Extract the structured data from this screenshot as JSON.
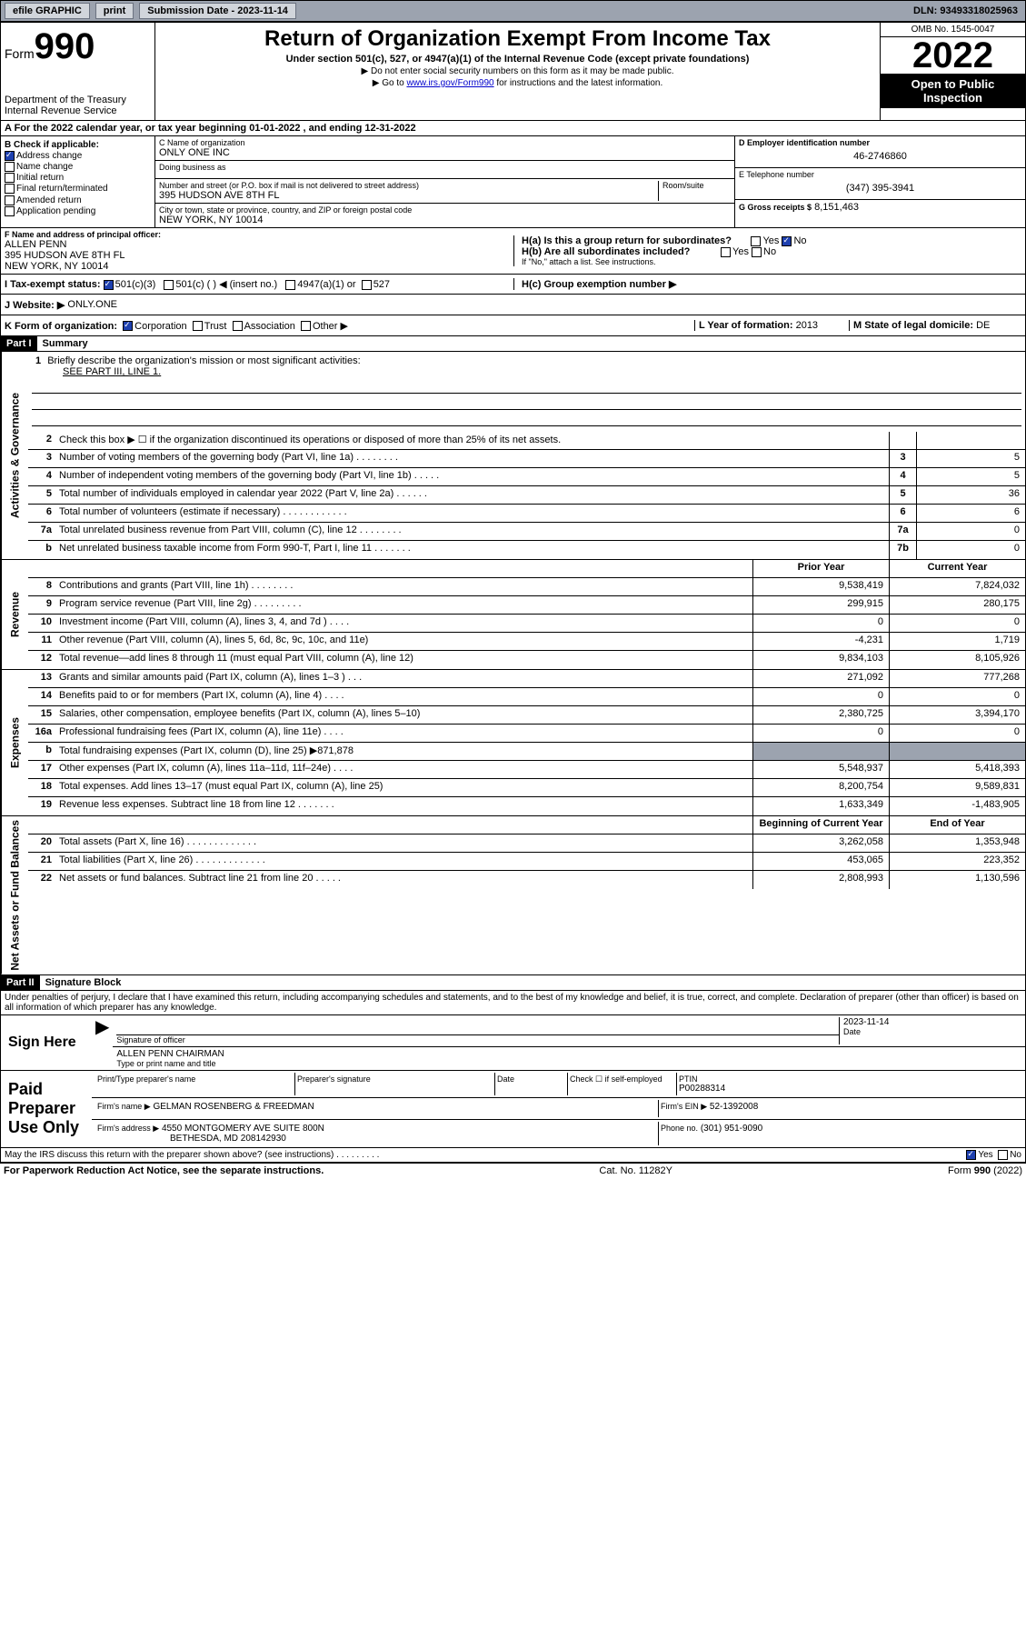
{
  "topbar": {
    "efile": "efile GRAPHIC",
    "print": "print",
    "sub_label": "Submission Date - 2023-11-14",
    "dln": "DLN: 93493318025963"
  },
  "header": {
    "form_label": "Form",
    "form_number": "990",
    "dept": "Department of the Treasury",
    "irs": "Internal Revenue Service",
    "title": "Return of Organization Exempt From Income Tax",
    "subtitle": "Under section 501(c), 527, or 4947(a)(1) of the Internal Revenue Code (except private foundations)",
    "note1": "▶ Do not enter social security numbers on this form as it may be made public.",
    "note2_prefix": "▶ Go to ",
    "note2_link": "www.irs.gov/Form990",
    "note2_suffix": " for instructions and the latest information.",
    "omb": "OMB No. 1545-0047",
    "year": "2022",
    "open": "Open to Public Inspection"
  },
  "taxyear": "A For the 2022 calendar year, or tax year beginning 01-01-2022    , and ending 12-31-2022",
  "checkboxes": {
    "heading": "B Check if applicable:",
    "items": [
      "Address change",
      "Name change",
      "Initial return",
      "Final return/terminated",
      "Amended return",
      "Application pending"
    ],
    "checked_idx": 0
  },
  "org": {
    "name_label": "C Name of organization",
    "name": "ONLY ONE INC",
    "dba_label": "Doing business as",
    "addr_label": "Number and street (or P.O. box if mail is not delivered to street address)",
    "room_label": "Room/suite",
    "addr": "395 HUDSON AVE 8TH FL",
    "city_label": "City or town, state or province, country, and ZIP or foreign postal code",
    "city": "NEW YORK, NY  10014"
  },
  "right_header": {
    "ein_label": "D Employer identification number",
    "ein": "46-2746860",
    "phone_label": "E Telephone number",
    "phone": "(347) 395-3941",
    "gross_label": "G Gross receipts $",
    "gross": "8,151,463"
  },
  "officer": {
    "label": "F Name and address of principal officer:",
    "name": "ALLEN PENN",
    "addr1": "395 HUDSON AVE 8TH FL",
    "addr2": "NEW YORK, NY  10014"
  },
  "h_section": {
    "ha": "H(a)  Is this a group return for subordinates?",
    "hb": "H(b)  Are all subordinates included?",
    "hb_note": "If \"No,\" attach a list. See instructions.",
    "hc": "H(c)  Group exemption number ▶",
    "yes": "Yes",
    "no": "No"
  },
  "tax_status": {
    "label": "I    Tax-exempt status:",
    "opts": [
      "501(c)(3)",
      "501(c) (  ) ◀ (insert no.)",
      "4947(a)(1) or",
      "527"
    ]
  },
  "website": {
    "label": "J    Website: ▶",
    "value": "ONLY.ONE"
  },
  "k_line": {
    "label": "K Form of organization:",
    "opts": [
      "Corporation",
      "Trust",
      "Association",
      "Other ▶"
    ]
  },
  "l_line": {
    "label": "L Year of formation:",
    "value": "2013"
  },
  "m_line": {
    "label": "M State of legal domicile:",
    "value": "DE"
  },
  "part1": {
    "label": "Part I",
    "title": "Summary"
  },
  "mission": {
    "num": "1",
    "label": "Briefly describe the organization's mission or most significant activities:",
    "text": "SEE PART III, LINE 1."
  },
  "governance": {
    "side": "Activities & Governance",
    "rows": [
      {
        "n": "2",
        "d": "Check this box ▶ ☐  if the organization discontinued its operations or disposed of more than 25% of its net assets.",
        "c": "",
        "v": ""
      },
      {
        "n": "3",
        "d": "Number of voting members of the governing body (Part VI, line 1a)    .    .    .    .    .    .    .    .",
        "c": "3",
        "v": "5"
      },
      {
        "n": "4",
        "d": "Number of independent voting members of the governing body (Part VI, line 1b)   .    .    .    .    .",
        "c": "4",
        "v": "5"
      },
      {
        "n": "5",
        "d": "Total number of individuals employed in calendar year 2022 (Part V, line 2a)    .    .    .    .    .    .",
        "c": "5",
        "v": "36"
      },
      {
        "n": "6",
        "d": "Total number of volunteers (estimate if necessary)    .    .    .    .    .    .    .    .    .    .    .    .",
        "c": "6",
        "v": "6"
      },
      {
        "n": "7a",
        "d": "Total unrelated business revenue from Part VIII, column (C), line 12   .    .    .    .    .    .    .    .",
        "c": "7a",
        "v": "0"
      },
      {
        "n": "b",
        "d": "Net unrelated business taxable income from Form 990-T, Part I, line 11   .    .    .    .    .    .    .",
        "c": "7b",
        "v": "0"
      }
    ]
  },
  "revenue": {
    "side": "Revenue",
    "head_prior": "Prior Year",
    "head_current": "Current Year",
    "rows": [
      {
        "n": "8",
        "d": "Contributions and grants (Part VIII, line 1h)    .    .    .    .    .    .    .    .",
        "p": "9,538,419",
        "c": "7,824,032"
      },
      {
        "n": "9",
        "d": "Program service revenue (Part VIII, line 2g)    .    .    .    .    .    .    .    .    .",
        "p": "299,915",
        "c": "280,175"
      },
      {
        "n": "10",
        "d": "Investment income (Part VIII, column (A), lines 3, 4, and 7d )    .    .    .    .",
        "p": "0",
        "c": "0"
      },
      {
        "n": "11",
        "d": "Other revenue (Part VIII, column (A), lines 5, 6d, 8c, 9c, 10c, and 11e)",
        "p": "-4,231",
        "c": "1,719"
      },
      {
        "n": "12",
        "d": "Total revenue—add lines 8 through 11 (must equal Part VIII, column (A), line 12)",
        "p": "9,834,103",
        "c": "8,105,926"
      }
    ]
  },
  "expenses": {
    "side": "Expenses",
    "rows": [
      {
        "n": "13",
        "d": "Grants and similar amounts paid (Part IX, column (A), lines 1–3 )    .    .    .",
        "p": "271,092",
        "c": "777,268"
      },
      {
        "n": "14",
        "d": "Benefits paid to or for members (Part IX, column (A), line 4)    .    .    .    .",
        "p": "0",
        "c": "0"
      },
      {
        "n": "15",
        "d": "Salaries, other compensation, employee benefits (Part IX, column (A), lines 5–10)",
        "p": "2,380,725",
        "c": "3,394,170"
      },
      {
        "n": "16a",
        "d": "Professional fundraising fees (Part IX, column (A), line 11e)    .    .    .    .",
        "p": "0",
        "c": "0"
      },
      {
        "n": "b",
        "d": "Total fundraising expenses (Part IX, column (D), line 25) ▶871,878",
        "p": "",
        "c": "",
        "shade": true
      },
      {
        "n": "17",
        "d": "Other expenses (Part IX, column (A), lines 11a–11d, 11f–24e)    .    .    .    .",
        "p": "5,548,937",
        "c": "5,418,393"
      },
      {
        "n": "18",
        "d": "Total expenses. Add lines 13–17 (must equal Part IX, column (A), line 25)",
        "p": "8,200,754",
        "c": "9,589,831"
      },
      {
        "n": "19",
        "d": "Revenue less expenses. Subtract line 18 from line 12   .    .    .    .    .    .    .",
        "p": "1,633,349",
        "c": "-1,483,905"
      }
    ]
  },
  "netassets": {
    "side": "Net Assets or Fund Balances",
    "head_begin": "Beginning of Current Year",
    "head_end": "End of Year",
    "rows": [
      {
        "n": "20",
        "d": "Total assets (Part X, line 16)    .    .    .    .    .    .    .    .    .    .    .    .    .",
        "p": "3,262,058",
        "c": "1,353,948"
      },
      {
        "n": "21",
        "d": "Total liabilities (Part X, line 26)    .    .    .    .    .    .    .    .    .    .    .    .    .",
        "p": "453,065",
        "c": "223,352"
      },
      {
        "n": "22",
        "d": "Net assets or fund balances. Subtract line 21 from line 20    .    .    .    .    .",
        "p": "2,808,993",
        "c": "1,130,596"
      }
    ]
  },
  "part2": {
    "label": "Part II",
    "title": "Signature Block"
  },
  "perjury": "Under penalties of perjury, I declare that I have examined this return, including accompanying schedules and statements, and to the best of my knowledge and belief, it is true, correct, and complete. Declaration of preparer (other than officer) is based on all information of which preparer has any knowledge.",
  "sign": {
    "here": "Sign Here",
    "sig_label": "Signature of officer",
    "date_label": "Date",
    "date": "2023-11-14",
    "name": "ALLEN PENN CHAIRMAN",
    "name_label": "Type or print name and title"
  },
  "paid": {
    "label": "Paid Preparer Use Only",
    "print_label": "Print/Type preparer's name",
    "prep_sig": "Preparer's signature",
    "date_label": "Date",
    "check_label": "Check ☐ if self-employed",
    "ptin_label": "PTIN",
    "ptin": "P00288314",
    "firm_name_label": "Firm's name    ▶",
    "firm_name": "GELMAN ROSENBERG & FREEDMAN",
    "firm_ein_label": "Firm's EIN ▶",
    "firm_ein": "52-1392008",
    "firm_addr_label": "Firm's address ▶",
    "firm_addr1": "4550 MONTGOMERY AVE SUITE 800N",
    "firm_addr2": "BETHESDA, MD  208142930",
    "phone_label": "Phone no.",
    "phone": "(301) 951-9090"
  },
  "discuss": "May the IRS discuss this return with the preparer shown above? (see instructions)    .    .    .    .    .    .    .    .    .",
  "footer": {
    "left": "For Paperwork Reduction Act Notice, see the separate instructions.",
    "center": "Cat. No. 11282Y",
    "right_prefix": "Form ",
    "right_form": "990",
    "right_suffix": " (2022)"
  }
}
